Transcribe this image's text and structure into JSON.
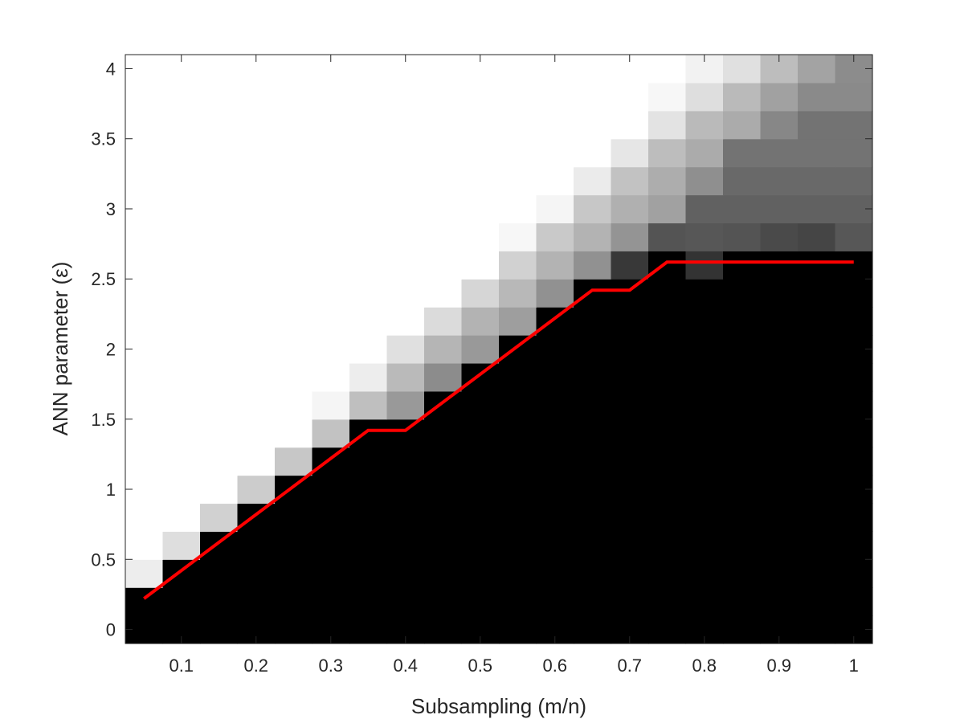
{
  "chart_data": {
    "type": "heatmap",
    "title": "",
    "xlabel": "Subsampling (m/n)",
    "ylabel": "ANN parameter (ε)",
    "xlim": [
      0.025,
      1.025
    ],
    "ylim": [
      -0.1,
      4.1
    ],
    "x_ticks": [
      "0.1",
      "0.2",
      "0.3",
      "0.4",
      "0.5",
      "0.6",
      "0.7",
      "0.8",
      "0.9",
      "1"
    ],
    "y_ticks": [
      "0",
      "0.5",
      "1",
      "1.5",
      "2",
      "2.5",
      "3",
      "3.5",
      "4"
    ],
    "x": [
      0.05,
      0.1,
      0.15,
      0.2,
      0.25,
      0.3,
      0.35,
      0.4,
      0.45,
      0.5,
      0.55,
      0.6,
      0.65,
      0.7,
      0.75,
      0.8,
      0.85,
      0.9,
      0.95,
      1.0
    ],
    "y": [
      0.0,
      0.2,
      0.4,
      0.6,
      0.8,
      1.0,
      1.2,
      1.4,
      1.6,
      1.8,
      2.0,
      2.2,
      2.4,
      2.6,
      2.8,
      3.0,
      3.2,
      3.4,
      3.6,
      3.8,
      4.0
    ],
    "colormap": "gray",
    "values": [
      [
        0.0,
        0.0,
        0.0,
        0.0,
        0.0,
        0.0,
        0.0,
        0.0,
        0.0,
        0.0,
        0.0,
        0.0,
        0.0,
        0.0,
        0.0,
        0.0,
        0.0,
        0.0,
        0.0,
        0.0
      ],
      [
        0.0,
        0.0,
        0.0,
        0.0,
        0.0,
        0.0,
        0.0,
        0.0,
        0.0,
        0.0,
        0.0,
        0.0,
        0.0,
        0.0,
        0.0,
        0.0,
        0.0,
        0.0,
        0.0,
        0.0
      ],
      [
        0.93,
        0.0,
        0.0,
        0.0,
        0.0,
        0.0,
        0.0,
        0.0,
        0.0,
        0.0,
        0.0,
        0.0,
        0.0,
        0.0,
        0.0,
        0.0,
        0.0,
        0.0,
        0.0,
        0.0
      ],
      [
        1.0,
        0.87,
        0.0,
        0.0,
        0.0,
        0.0,
        0.0,
        0.0,
        0.0,
        0.0,
        0.0,
        0.0,
        0.0,
        0.0,
        0.0,
        0.0,
        0.0,
        0.0,
        0.0,
        0.0
      ],
      [
        1.0,
        1.0,
        0.82,
        0.0,
        0.0,
        0.0,
        0.0,
        0.0,
        0.0,
        0.0,
        0.0,
        0.0,
        0.0,
        0.0,
        0.0,
        0.0,
        0.0,
        0.0,
        0.0,
        0.0
      ],
      [
        1.0,
        1.0,
        1.0,
        0.8,
        0.0,
        0.0,
        0.0,
        0.0,
        0.0,
        0.0,
        0.0,
        0.0,
        0.0,
        0.0,
        0.0,
        0.0,
        0.0,
        0.0,
        0.0,
        0.0
      ],
      [
        1.0,
        1.0,
        1.0,
        1.0,
        0.78,
        0.0,
        0.0,
        0.0,
        0.0,
        0.0,
        0.0,
        0.0,
        0.0,
        0.0,
        0.0,
        0.0,
        0.0,
        0.0,
        0.0,
        0.0
      ],
      [
        1.0,
        1.0,
        1.0,
        1.0,
        1.0,
        0.76,
        0.0,
        0.0,
        0.0,
        0.0,
        0.0,
        0.0,
        0.0,
        0.0,
        0.0,
        0.0,
        0.0,
        0.0,
        0.0,
        0.0
      ],
      [
        1.0,
        1.0,
        1.0,
        1.0,
        1.0,
        0.96,
        0.75,
        0.6,
        0.0,
        0.0,
        0.0,
        0.0,
        0.0,
        0.0,
        0.0,
        0.0,
        0.0,
        0.0,
        0.0,
        0.0
      ],
      [
        1.0,
        1.0,
        1.0,
        1.0,
        1.0,
        1.0,
        0.93,
        0.73,
        0.55,
        0.0,
        0.0,
        0.0,
        0.0,
        0.0,
        0.0,
        0.0,
        0.0,
        0.0,
        0.0,
        0.0
      ],
      [
        1.0,
        1.0,
        1.0,
        1.0,
        1.0,
        1.0,
        1.0,
        0.88,
        0.71,
        0.6,
        0.0,
        0.0,
        0.0,
        0.0,
        0.0,
        0.0,
        0.0,
        0.0,
        0.0,
        0.0
      ],
      [
        1.0,
        1.0,
        1.0,
        1.0,
        1.0,
        1.0,
        1.0,
        1.0,
        0.86,
        0.7,
        0.62,
        0.0,
        0.0,
        0.0,
        0.0,
        0.0,
        0.0,
        0.0,
        0.0,
        0.0
      ],
      [
        1.0,
        1.0,
        1.0,
        1.0,
        1.0,
        1.0,
        1.0,
        1.0,
        1.0,
        0.84,
        0.72,
        0.57,
        0.0,
        0.0,
        0.0,
        0.0,
        0.0,
        0.0,
        0.0,
        0.0
      ],
      [
        1.0,
        1.0,
        1.0,
        1.0,
        1.0,
        1.0,
        1.0,
        1.0,
        1.0,
        1.0,
        0.82,
        0.7,
        0.57,
        0.22,
        0.0,
        0.2,
        0.0,
        0.0,
        0.0,
        0.0
      ],
      [
        1.0,
        1.0,
        1.0,
        1.0,
        1.0,
        1.0,
        1.0,
        1.0,
        1.0,
        1.0,
        0.97,
        0.79,
        0.7,
        0.58,
        0.33,
        0.34,
        0.33,
        0.29,
        0.27,
        0.34
      ],
      [
        1.0,
        1.0,
        1.0,
        1.0,
        1.0,
        1.0,
        1.0,
        1.0,
        1.0,
        1.0,
        1.0,
        0.96,
        0.78,
        0.69,
        0.63,
        0.38,
        0.38,
        0.38,
        0.38,
        0.38
      ],
      [
        1.0,
        1.0,
        1.0,
        1.0,
        1.0,
        1.0,
        1.0,
        1.0,
        1.0,
        1.0,
        1.0,
        1.0,
        0.92,
        0.76,
        0.68,
        0.56,
        0.41,
        0.41,
        0.41,
        0.41
      ],
      [
        1.0,
        1.0,
        1.0,
        1.0,
        1.0,
        1.0,
        1.0,
        1.0,
        1.0,
        1.0,
        1.0,
        1.0,
        1.0,
        0.9,
        0.74,
        0.67,
        0.45,
        0.45,
        0.45,
        0.45
      ],
      [
        1.0,
        1.0,
        1.0,
        1.0,
        1.0,
        1.0,
        1.0,
        1.0,
        1.0,
        1.0,
        1.0,
        1.0,
        1.0,
        1.0,
        0.89,
        0.73,
        0.67,
        0.53,
        0.45,
        0.45
      ],
      [
        1.0,
        1.0,
        1.0,
        1.0,
        1.0,
        1.0,
        1.0,
        1.0,
        1.0,
        1.0,
        1.0,
        1.0,
        1.0,
        1.0,
        0.97,
        0.87,
        0.73,
        0.63,
        0.54,
        0.54
      ],
      [
        1.0,
        1.0,
        1.0,
        1.0,
        1.0,
        1.0,
        1.0,
        1.0,
        1.0,
        1.0,
        1.0,
        1.0,
        1.0,
        1.0,
        1.0,
        0.95,
        0.88,
        0.74,
        0.64,
        0.55
      ]
    ],
    "overlay_line": {
      "color": "#ff0000",
      "x": [
        0.05,
        0.35,
        0.4,
        0.65,
        0.7,
        0.75,
        1.0
      ],
      "y": [
        0.22,
        1.42,
        1.42,
        2.42,
        2.42,
        2.62,
        2.62
      ]
    },
    "grid": false
  }
}
